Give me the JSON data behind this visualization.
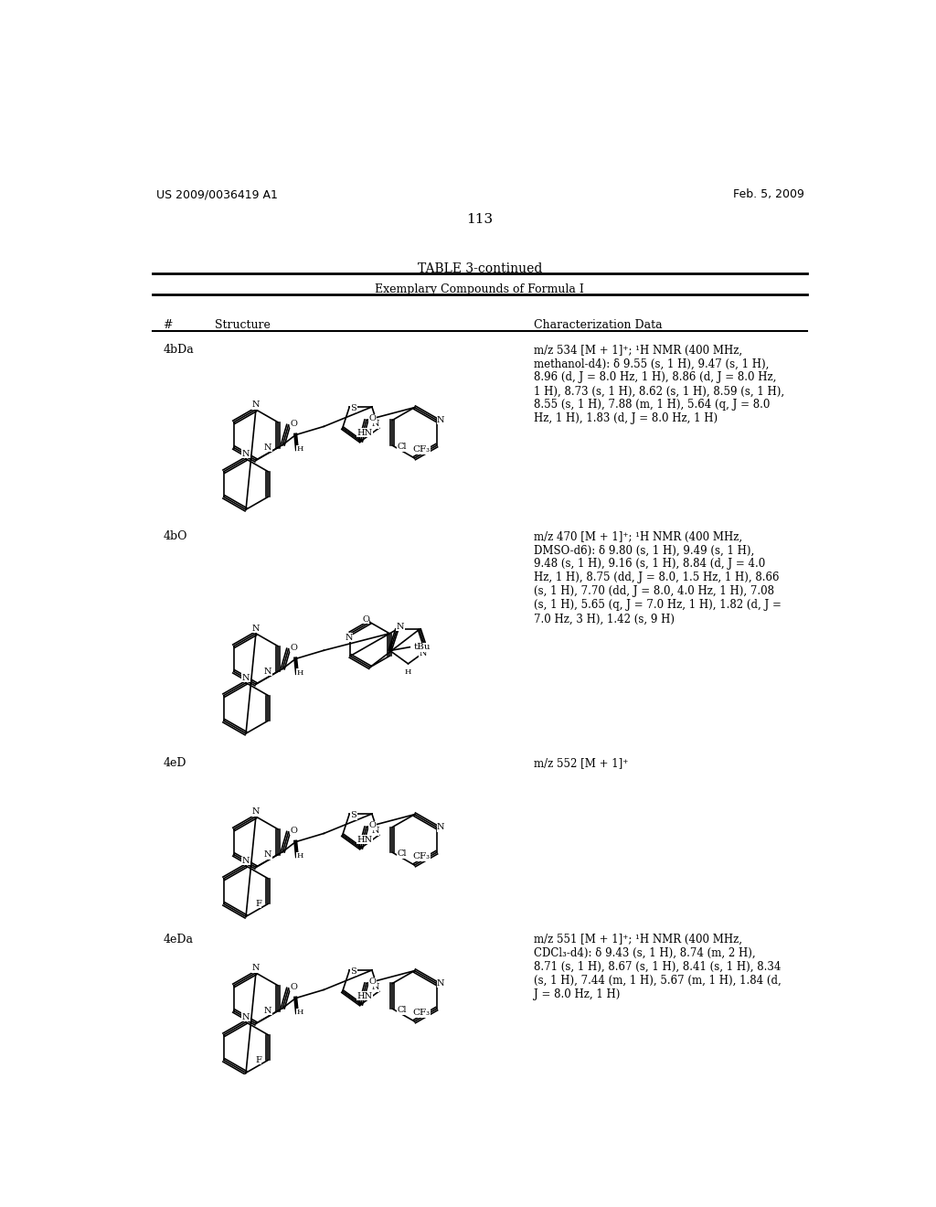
{
  "background_color": "#ffffff",
  "page_number": "113",
  "header_left": "US 2009/0036419 A1",
  "header_right": "Feb. 5, 2009",
  "table_title": "TABLE 3-continued",
  "table_subtitle": "Exemplary Compounds of Formula I",
  "col_hash": "#",
  "col_structure": "Structure",
  "col_char": "Characterization Data",
  "compounds": [
    {
      "id": "4bDa",
      "char_data": "m/z 534 [M + 1]⁺; ¹H NMR (400 MHz,\nmethanol-d4): δ 9.55 (s, 1 H), 9.47 (s, 1 H),\n8.96 (d, J = 8.0 Hz, 1 H), 8.86 (d, J = 8.0 Hz,\n1 H), 8.73 (s, 1 H), 8.62 (s, 1 H), 8.59 (s, 1 H),\n8.55 (s, 1 H), 7.88 (m, 1 H), 5.64 (q, J = 8.0\nHz, 1 H), 1.83 (d, J = 8.0 Hz, 1 H)"
    },
    {
      "id": "4bO",
      "char_data": "m/z 470 [M + 1]⁺; ¹H NMR (400 MHz,\nDMSO-d6): δ 9.80 (s, 1 H), 9.49 (s, 1 H),\n9.48 (s, 1 H), 9.16 (s, 1 H), 8.84 (d, J = 4.0\nHz, 1 H), 8.75 (dd, J = 8.0, 1.5 Hz, 1 H), 8.66\n(s, 1 H), 7.70 (dd, J = 8.0, 4.0 Hz, 1 H), 7.08\n(s, 1 H), 5.65 (q, J = 7.0 Hz, 1 H), 1.82 (d, J =\n7.0 Hz, 3 H), 1.42 (s, 9 H)"
    },
    {
      "id": "4eD",
      "char_data": "m/z 552 [M + 1]⁺"
    },
    {
      "id": "4eDa",
      "char_data": "m/z 551 [M + 1]⁺; ¹H NMR (400 MHz,\nCDCl₃-d4): δ 9.43 (s, 1 H), 8.74 (m, 2 H),\n8.71 (s, 1 H), 8.67 (s, 1 H), 8.41 (s, 1 H), 8.34\n(s, 1 H), 7.44 (m, 1 H), 5.67 (m, 1 H), 1.84 (d,\nJ = 8.0 Hz, 1 H)"
    }
  ],
  "hline_y": [
    182,
    212,
    265
  ],
  "hline_x": [
    50,
    974
  ]
}
